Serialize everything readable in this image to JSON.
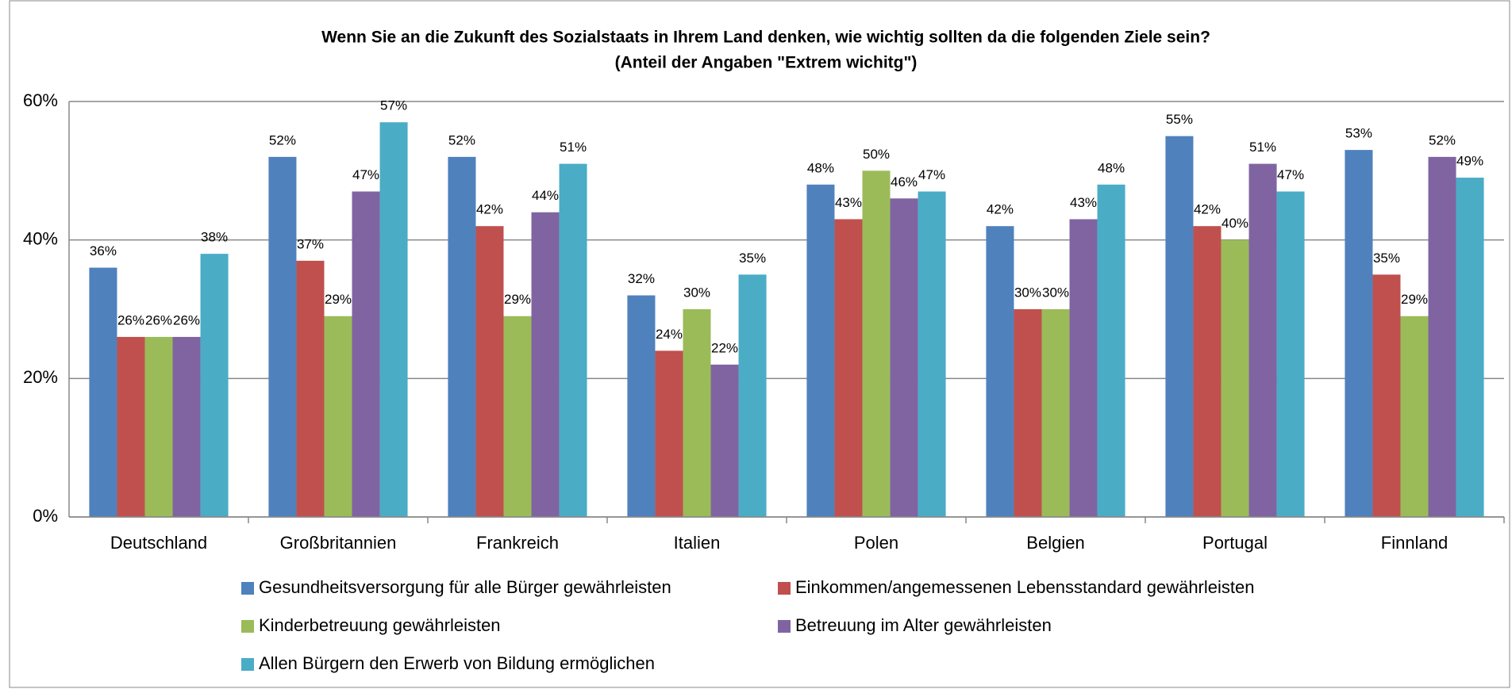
{
  "chart_data": {
    "type": "bar",
    "title": "Wenn Sie an die Zukunft des Sozialstaats in Ihrem Land denken, wie wichtig sollten da die folgenden Ziele sein?",
    "subtitle": "(Anteil der Angaben  \"Extrem wichitg\")",
    "categories": [
      "Deutschland",
      "Großbritannien",
      "Frankreich",
      "Italien",
      "Polen",
      "Belgien",
      "Portugal",
      "Finnland"
    ],
    "series": [
      {
        "name": "Gesundheitsversorgung für alle Bürger gewährleisten",
        "color": "#4f81bd",
        "values": [
          36,
          52,
          52,
          32,
          48,
          42,
          55,
          53
        ],
        "value_labels": [
          "36%",
          "52%",
          "52%",
          "32%",
          "48%",
          "42%",
          "55%",
          "53%"
        ]
      },
      {
        "name": "Einkommen/angemessenen Lebensstandard gewährleisten",
        "color": "#c0504d",
        "values": [
          26,
          37,
          42,
          24,
          43,
          30,
          42,
          35
        ],
        "value_labels": [
          "26%",
          "37%",
          "42%",
          "24%",
          "43%",
          "30%",
          "42%",
          "35%"
        ]
      },
      {
        "name": "Kinderbetreuung gewährleisten",
        "color": "#9bbb59",
        "values": [
          26,
          29,
          29,
          30,
          50,
          30,
          40,
          29
        ],
        "value_labels": [
          "26%",
          "29%",
          "29%",
          "30%",
          "50%",
          "30%",
          "40%",
          "29%"
        ]
      },
      {
        "name": "Betreuung im Alter gewährleisten",
        "color": "#8064a2",
        "values": [
          26,
          47,
          44,
          22,
          46,
          43,
          51,
          52
        ],
        "value_labels": [
          "26%",
          "47%",
          "44%",
          "22%",
          "46%",
          "43%",
          "51%",
          "52%"
        ]
      },
      {
        "name": "Allen Bürgern den Erwerb von Bildung ermöglichen",
        "color": "#4bacc6",
        "values": [
          38,
          57,
          51,
          35,
          47,
          48,
          47,
          49
        ],
        "value_labels": [
          "38%",
          "57%",
          "51%",
          "35%",
          "47%",
          "48%",
          "47%",
          "49%"
        ]
      }
    ],
    "ylim": [
      0,
      60
    ],
    "yticks": [
      {
        "value": 0,
        "label": "0%"
      },
      {
        "value": 20,
        "label": "20%"
      },
      {
        "value": 40,
        "label": "40%"
      },
      {
        "value": 60,
        "label": "60%"
      }
    ],
    "grid": true,
    "legend": "bottom"
  }
}
